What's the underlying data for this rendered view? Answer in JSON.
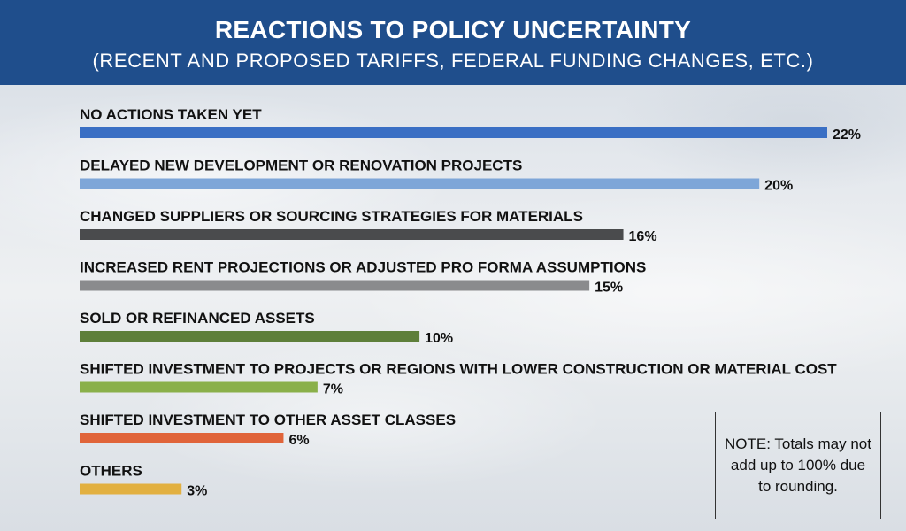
{
  "header": {
    "title": "REACTIONS TO POLICY UNCERTAINTY",
    "subtitle": "(RECENT AND PROPOSED TARIFFS, FEDERAL FUNDING CHANGES, ETC.)"
  },
  "note": "NOTE: Totals may not add up to 100% due to rounding.",
  "chart_data": {
    "type": "bar",
    "orientation": "horizontal",
    "title": "REACTIONS TO POLICY UNCERTAINTY",
    "subtitle": "(RECENT AND PROPOSED TARIFFS, FEDERAL FUNDING CHANGES, ETC.)",
    "xlabel": "",
    "ylabel": "",
    "grid": false,
    "categories": [
      "NO ACTIONS TAKEN YET",
      "DELAYED NEW DEVELOPMENT OR RENOVATION PROJECTS",
      "CHANGED SUPPLIERS OR SOURCING STRATEGIES FOR MATERIALS",
      "INCREASED RENT PROJECTIONS OR ADJUSTED PRO FORMA ASSUMPTIONS",
      "SOLD OR REFINANCED ASSETS",
      "SHIFTED INVESTMENT TO PROJECTS OR REGIONS WITH LOWER CONSTRUCTION OR MATERIAL COST",
      "SHIFTED INVESTMENT TO OTHER ASSET CLASSES",
      "OTHERS"
    ],
    "values": [
      22,
      20,
      16,
      15,
      10,
      7,
      6,
      3
    ],
    "value_labels": [
      "22%",
      "20%",
      "16%",
      "15%",
      "10%",
      "7%",
      "6%",
      "3%"
    ],
    "colors": [
      "#3a6fc4",
      "#7ea6d8",
      "#4a4b4d",
      "#8a8b8d",
      "#5e7f3a",
      "#8ab04a",
      "#e0643a",
      "#e2b040"
    ],
    "xlim": [
      0,
      22
    ]
  }
}
